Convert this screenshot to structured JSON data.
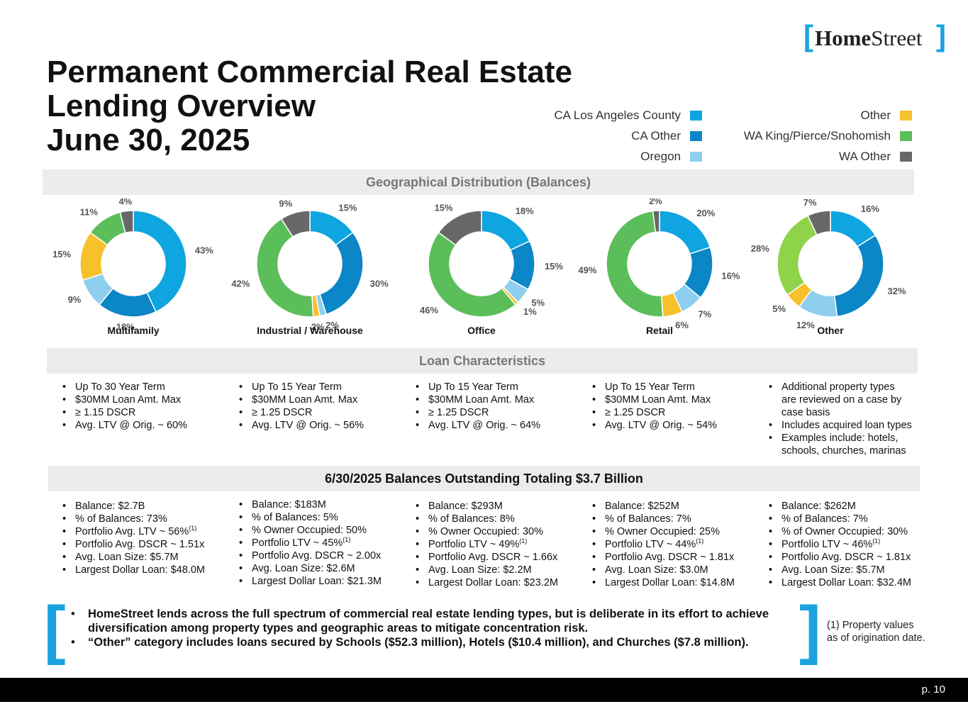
{
  "logo": {
    "bracket_left": "[",
    "bold": "Home",
    "regular": "Street",
    "bracket_right": "]"
  },
  "title": {
    "line1": "Permanent Commercial Real Estate",
    "line2": "Lending Overview",
    "line3": "June 30, 2025"
  },
  "legend": [
    {
      "label": "CA Los Angeles County",
      "color": "#0ea5e0"
    },
    {
      "label": "CA Other",
      "color": "#0b86c6"
    },
    {
      "label": "Oregon",
      "color": "#8ecfef"
    },
    {
      "label": "Other",
      "color": "#f7c12c"
    },
    {
      "label": "WA King/Pierce/Snohomish",
      "color": "#5cbe5a"
    },
    {
      "label": "WA Other",
      "color": "#686868"
    }
  ],
  "sections": {
    "geo": "Geographical Distribution (Balances)",
    "loan": "Loan Characteristics",
    "balances": "6/30/2025 Balances Outstanding Totaling $3.7 Billion"
  },
  "chart_data": [
    {
      "type": "pie",
      "title": "Multifamily",
      "categories": [
        "CA Los Angeles County",
        "CA Other",
        "Oregon",
        "Other",
        "WA King/Pierce/Snohomish",
        "WA Other"
      ],
      "values": [
        43,
        18,
        9,
        15,
        11,
        4
      ],
      "labels": [
        "43%",
        "18%",
        "9%",
        "15%",
        "11%",
        "4%"
      ]
    },
    {
      "type": "pie",
      "title": "Industrial / Warehouse",
      "categories": [
        "CA Los Angeles County",
        "CA Other",
        "Oregon",
        "Other",
        "WA King/Pierce/Snohomish",
        "WA Other"
      ],
      "values": [
        15,
        30,
        2,
        2,
        42,
        9
      ],
      "labels": [
        "15%",
        "30%",
        "2%",
        "2%",
        "42%",
        "9%"
      ]
    },
    {
      "type": "pie",
      "title": "Office",
      "categories": [
        "CA Los Angeles County",
        "CA Other",
        "Oregon",
        "Other",
        "WA King/Pierce/Snohomish",
        "WA Other"
      ],
      "values": [
        18,
        15,
        5,
        1,
        46,
        15
      ],
      "labels": [
        "18%",
        "15%",
        "5%",
        "1%",
        "46%",
        "15%"
      ]
    },
    {
      "type": "pie",
      "title": "Retail",
      "categories": [
        "CA Los Angeles County",
        "CA Other",
        "Oregon",
        "Other",
        "WA King/Pierce/Snohomish",
        "WA Other"
      ],
      "values": [
        20,
        16,
        7,
        6,
        49,
        2
      ],
      "labels": [
        "20%",
        "16%",
        "7%",
        "6%",
        "49%",
        "2%"
      ]
    },
    {
      "type": "pie",
      "title": "Other",
      "categories": [
        "CA Los Angeles County",
        "CA Other",
        "Oregon",
        "Other",
        "WA King/Pierce/Snohomish",
        "WA Other"
      ],
      "values": [
        16,
        32,
        12,
        5,
        28,
        7
      ],
      "labels": [
        "16%",
        "32%",
        "12%",
        "5%",
        "28%",
        "7%"
      ],
      "colors_override": {
        "4": "#8ed34a"
      }
    }
  ],
  "loan_characteristics": [
    [
      "Up To 30 Year Term",
      "$30MM Loan Amt. Max",
      "≥ 1.15 DSCR",
      "Avg. LTV @ Orig. ~ 60%"
    ],
    [
      "Up To 15 Year Term",
      "$30MM Loan Amt. Max",
      "≥ 1.25 DSCR",
      "Avg. LTV @ Orig. ~  56%"
    ],
    [
      "Up To 15 Year Term",
      "$30MM Loan Amt. Max",
      "≥ 1.25 DSCR",
      "Avg. LTV @ Orig. ~ 64%"
    ],
    [
      "Up To 15 Year Term",
      "$30MM Loan Amt. Max",
      "≥ 1.25 DSCR",
      "Avg. LTV @ Orig. ~ 54%"
    ],
    [
      "Additional property types",
      "are reviewed on a case by",
      "case basis",
      "Includes acquired loan types",
      "Examples include:  hotels,",
      "schools, churches, marinas"
    ]
  ],
  "balances": [
    [
      "Balance:  $2.7B",
      "% of Balances: 73%",
      "Portfolio Avg. LTV  ~ 56%",
      "Portfolio Avg. DSCR ~ 1.51x",
      "Avg. Loan Size:  $5.7M",
      "Largest Dollar Loan: $48.0M"
    ],
    [
      "Balance:  $183M",
      "% of Balances: 5%",
      "% Owner Occupied:  50%",
      "Portfolio LTV ~ 45%",
      "Portfolio Avg. DSCR ~ 2.00x",
      "Avg. Loan Size:  $2.6M",
      "Largest Dollar Loan: $21.3M"
    ],
    [
      "Balance:  $293M",
      "% of Balances: 8%",
      "% Owner Occupied:  30%",
      "Portfolio LTV ~ 49%",
      "Portfolio Avg. DSCR ~ 1.66x",
      "Avg. Loan Size:  $2.2M",
      "Largest Dollar Loan: $23.2M"
    ],
    [
      "Balance:  $252M",
      "% of Balances: 7%",
      "% Owner Occupied:  25%",
      "Portfolio LTV ~ 44%",
      "Portfolio Avg. DSCR ~ 1.81x",
      "Avg. Loan Size:  $3.0M",
      "Largest Dollar Loan: $14.8M"
    ],
    [
      "Balance:  $262M",
      "% of Balances: 7%",
      "% of Owner Occupied:  30%",
      "Portfolio LTV ~ 46%",
      "Portfolio Avg. DSCR ~ 1.81x",
      "Avg. Loan Size:  $5.7M",
      "Largest Dollar Loan: $32.4M"
    ]
  ],
  "footnote_marker": "(1)",
  "notes": {
    "bullet1": "HomeStreet lends across the full spectrum of commercial real estate lending types, but is deliberate in its effort to achieve diversification among property types and geographic areas to mitigate concentration risk.",
    "bullet2": "“Other” category includes loans secured by Schools ($52.3 million), Hotels ($10.4 million), and Churches ($7.8 million).",
    "bracket_left": "[",
    "bracket_right": "]"
  },
  "footnote": "(1) Property values as of origination date.",
  "page": "p. 10"
}
